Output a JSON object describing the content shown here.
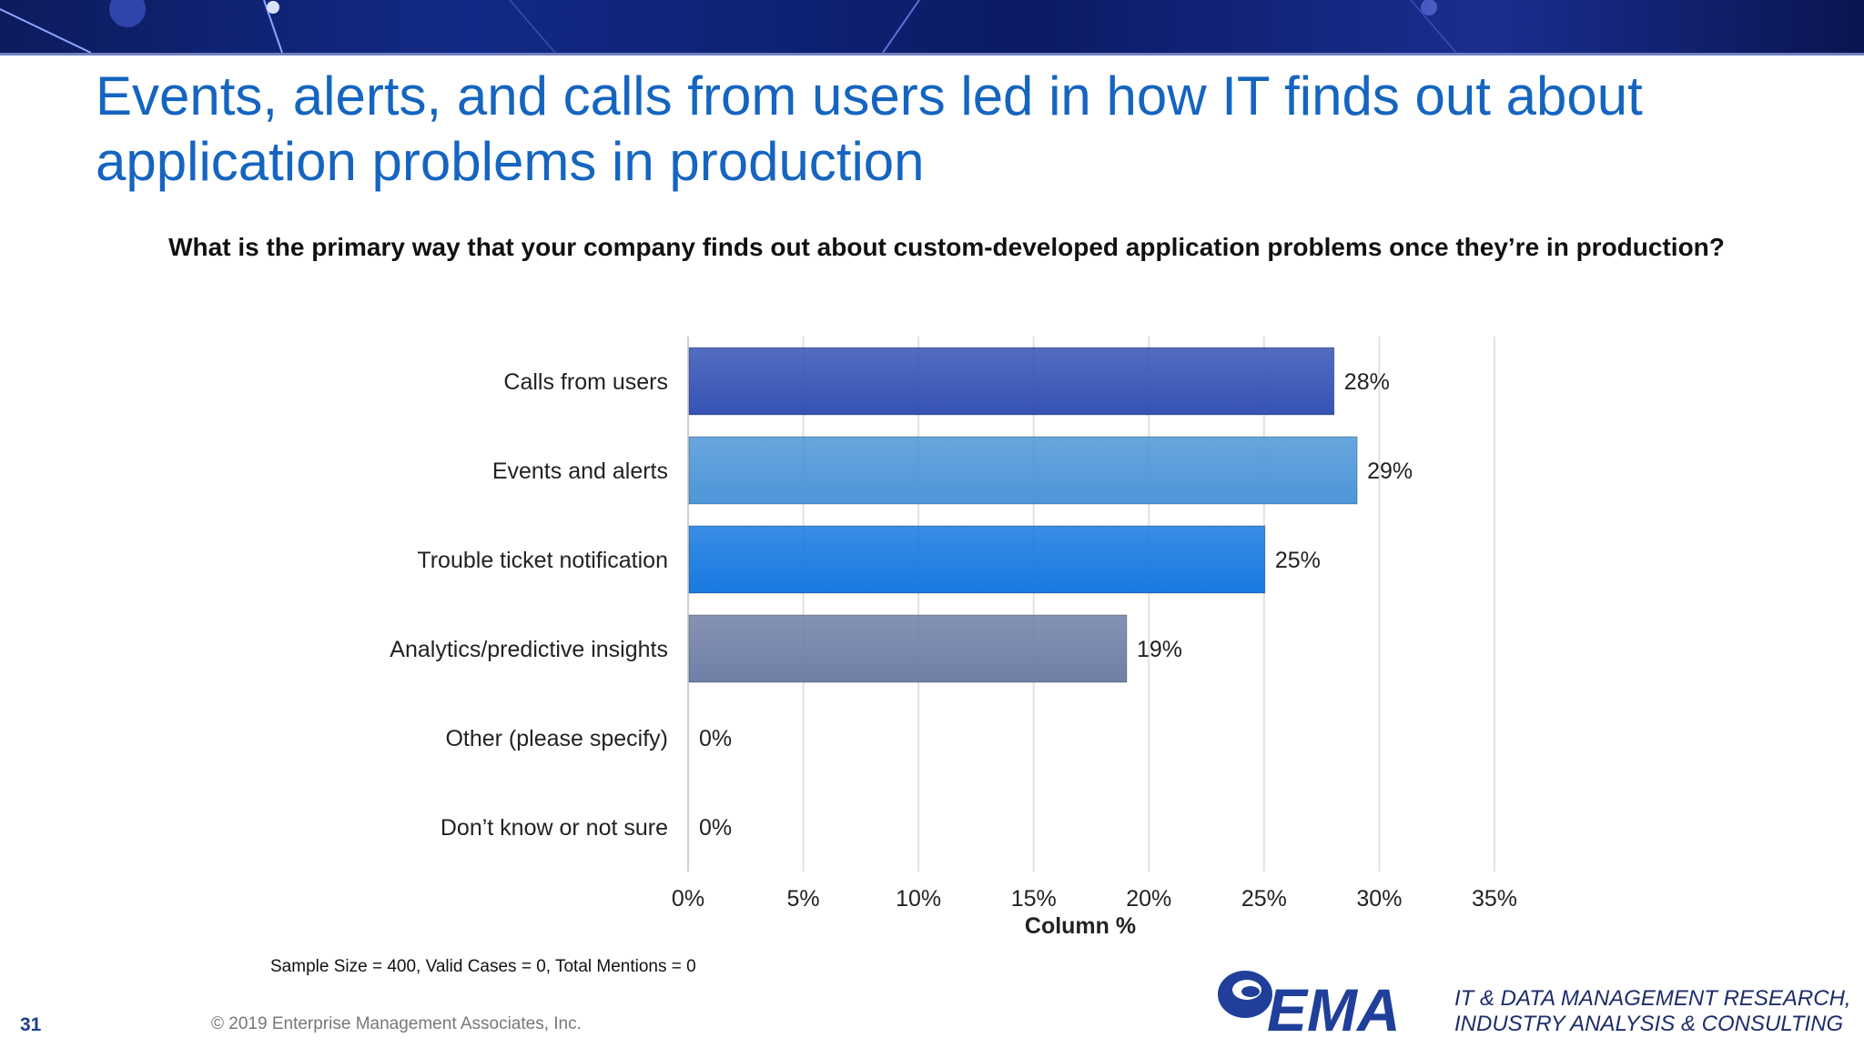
{
  "slide": {
    "title": "Events, alerts, and calls from users led in how IT finds out about application problems in production",
    "question": "What is the primary way that your company finds out about custom-developed application problems once they’re in production?",
    "footnote": "Sample Size = 400, Valid Cases = 0, Total Mentions = 0",
    "slide_number": "31",
    "copyright": "© 2019 Enterprise Management Associates, Inc.",
    "logo_text": "EMA",
    "tagline_line1": "IT & DATA MANAGEMENT RESEARCH,",
    "tagline_line2": "INDUSTRY ANALYSIS & CONSULTING"
  },
  "chart_data": {
    "type": "bar",
    "orientation": "horizontal",
    "categories": [
      "Calls from users",
      "Events and alerts",
      "Trouble ticket notification",
      "Analytics/predictive insights",
      "Other (please specify)",
      "Don’t know or not sure"
    ],
    "values": [
      28,
      29,
      25,
      19,
      0,
      0
    ],
    "data_labels": [
      "28%",
      "29%",
      "25%",
      "19%",
      "0%",
      "0%"
    ],
    "bar_colors": [
      "#3553b5",
      "#4d96d8",
      "#1779e0",
      "#6f7fa6",
      "#888888",
      "#888888"
    ],
    "xlabel": "Column %",
    "xlim": [
      0,
      35
    ],
    "xticks": [
      0,
      5,
      10,
      15,
      20,
      25,
      30,
      35
    ],
    "xtick_labels": [
      "0%",
      "5%",
      "10%",
      "15%",
      "20%",
      "25%",
      "30%",
      "35%"
    ],
    "grid": "vertical"
  }
}
